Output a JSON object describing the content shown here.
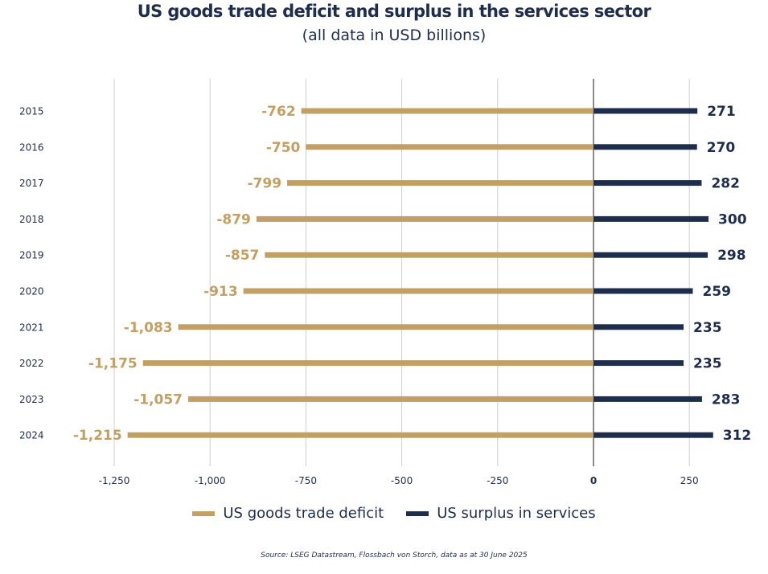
{
  "chart_data": {
    "type": "bar",
    "orientation": "horizontal",
    "title": "US goods trade deficit and surplus in the services sector",
    "subtitle": "(all data in USD billions)",
    "categories": [
      "2015",
      "2016",
      "2017",
      "2018",
      "2019",
      "2020",
      "2021",
      "2022",
      "2023",
      "2024"
    ],
    "series": [
      {
        "name": "US goods trade deficit",
        "color": "#c2a063",
        "values": [
          -762,
          -750,
          -799,
          -879,
          -857,
          -913,
          -1083,
          -1175,
          -1057,
          -1215
        ]
      },
      {
        "name": "US surplus in services",
        "color": "#1f2d4d",
        "values": [
          271,
          270,
          282,
          300,
          298,
          259,
          235,
          235,
          283,
          312
        ]
      }
    ],
    "value_labels": [
      [
        "-762",
        "-750",
        "-799",
        "-879",
        "-857",
        "-913",
        "-1,083",
        "-1,175",
        "-1,057",
        "-1,215"
      ],
      [
        "271",
        "270",
        "282",
        "300",
        "298",
        "259",
        "235",
        "235",
        "283",
        "312"
      ]
    ],
    "xlim": [
      -1250,
      250
    ],
    "xticks": [
      -1250,
      -1000,
      -750,
      -500,
      -250,
      0,
      250
    ],
    "xtick_labels": [
      "-1,250",
      "-1,000",
      "-750",
      "-500",
      "-250",
      "0",
      "250"
    ],
    "grid": true,
    "legend_position": "bottom-center"
  },
  "source": "Source: LSEG Datastream, Flossbach von Storch, data as at 30 June 2025"
}
